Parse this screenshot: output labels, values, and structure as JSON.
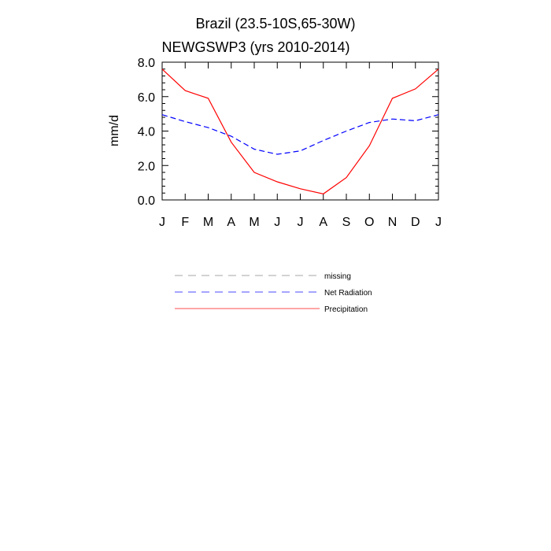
{
  "chart_data": {
    "type": "line",
    "title": "Brazil (23.5-10S,65-30W)",
    "subtitle": "NEWGSWP3 (yrs 2010-2014)",
    "ylabel": "mm/d",
    "xlabel": "",
    "ylim": [
      0,
      8
    ],
    "yticks": [
      "0.0",
      "2.0",
      "4.0",
      "6.0",
      "8.0"
    ],
    "ytick_values": [
      0,
      2,
      4,
      6,
      8
    ],
    "categories": [
      "J",
      "F",
      "M",
      "A",
      "M",
      "J",
      "J",
      "A",
      "S",
      "O",
      "N",
      "D",
      "J"
    ],
    "grid": false,
    "legend_position": "below",
    "series": [
      {
        "name": "Net Radiation",
        "color": "#0000ff",
        "style": "dashed",
        "values": [
          4.95,
          4.55,
          4.2,
          3.7,
          2.95,
          2.65,
          2.85,
          3.45,
          4.0,
          4.5,
          4.7,
          4.6,
          4.95
        ]
      },
      {
        "name": "Precipitation",
        "color": "#ff0000",
        "style": "solid",
        "values": [
          7.6,
          6.35,
          5.9,
          3.35,
          1.6,
          1.05,
          0.65,
          0.35,
          1.3,
          3.15,
          5.9,
          6.45,
          7.6
        ]
      }
    ],
    "legend": [
      {
        "label": "missing",
        "color": "#808080",
        "style": "dashed"
      },
      {
        "label": "Net Radiation",
        "color": "#0000ff",
        "style": "dashed"
      },
      {
        "label": "Precipitation",
        "color": "#ff0000",
        "style": "solid"
      }
    ]
  }
}
